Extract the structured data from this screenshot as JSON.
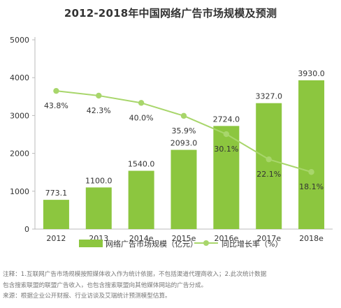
{
  "chart_data": {
    "type": "bar",
    "title": "2012-2018年中国网络广告市场规模及预测",
    "categories": [
      "2012",
      "2013",
      "2014e",
      "2015e",
      "2016e",
      "2017e",
      "2018e"
    ],
    "series": [
      {
        "name": "网络广告市场规模（亿元）",
        "type": "bar",
        "axis": "left",
        "values": [
          773.1,
          1100.0,
          1540.0,
          2093.0,
          2724.0,
          3327.0,
          3930.0
        ],
        "value_labels": [
          "773.1",
          "1100.0",
          "1540.0",
          "2093.0",
          "2724.0",
          "3327.0",
          "3930.0"
        ],
        "color": "#8cc63f"
      },
      {
        "name": "同比增长率（%）",
        "type": "line",
        "axis": "right-hidden",
        "values": [
          43.8,
          42.3,
          40.0,
          35.9,
          30.1,
          22.1,
          18.1
        ],
        "value_labels": [
          "43.8%",
          "42.3%",
          "40.0%",
          "35.9%",
          "30.1%",
          "22.1%",
          "18.1%"
        ],
        "color": "#a8d66b"
      }
    ],
    "y_left": {
      "min": 0,
      "max": 5000,
      "ticks": [
        "0",
        "1000",
        "2000",
        "3000",
        "4000",
        "5000"
      ]
    },
    "y_right": {
      "min": 0,
      "max": 60
    },
    "grid": false,
    "legend": "bottom"
  },
  "notes": {
    "line1": "注释：1.互联网广告市场规模按照媒体收入作为统计依据，不包括渠道代理商收入；2.此次统计数据",
    "line2": "包含搜索联盟的联盟广告收入，也包含搜索联盟向其他媒体网站的广告分成。",
    "line3": "来源：根据企业公开财报、行业访谈及艾瑞统计预测模型估算。"
  }
}
